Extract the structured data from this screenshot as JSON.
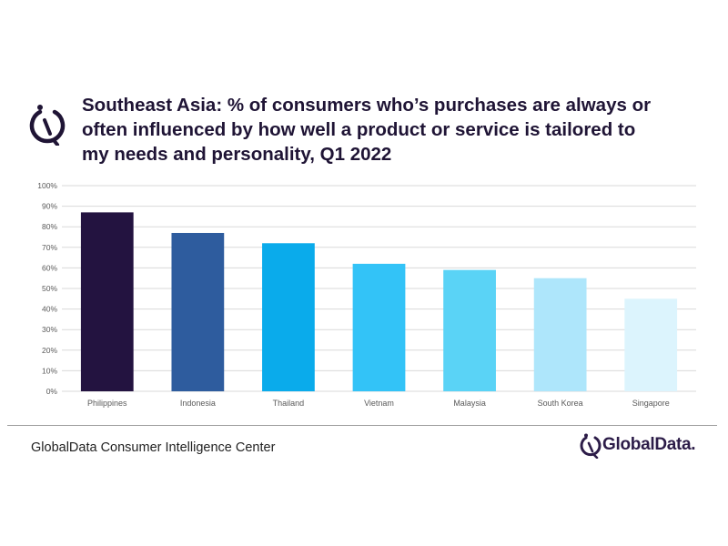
{
  "title_lines": [
    "Southeast Asia: % of consumers who’s purchases are always or",
    "often influenced by how well a product or service is tailored to",
    "my needs and personality, Q1 2022"
  ],
  "footer": {
    "source": "GlobalData Consumer Intelligence Center"
  },
  "brand": {
    "name": "GlobalData.",
    "icon": "globaldata-logo-icon"
  },
  "colors": {
    "title": "#1f1435",
    "grid": "#d9d9d9",
    "tick": "#595959",
    "bars": [
      "#231340",
      "#2e5c9e",
      "#0aabeb",
      "#33c3f7",
      "#5ad3f6",
      "#aee6fb",
      "#dcf4fd"
    ]
  },
  "chart_data": {
    "type": "bar",
    "categories": [
      "Philippines",
      "Indonesia",
      "Thailand",
      "Vietnam",
      "Malaysia",
      "South Korea",
      "Singapore"
    ],
    "values": [
      87,
      77,
      72,
      62,
      59,
      55,
      45
    ],
    "title": "Southeast Asia: % of consumers who’s purchases are always or often influenced by how well a product or service is tailored to my needs and personality, Q1 2022",
    "xlabel": "",
    "ylabel": "",
    "ylim": [
      0,
      100
    ],
    "yticks": [
      "0%",
      "10%",
      "20%",
      "30%",
      "40%",
      "50%",
      "60%",
      "70%",
      "80%",
      "90%",
      "100%"
    ],
    "grid": true,
    "legend": "none"
  }
}
